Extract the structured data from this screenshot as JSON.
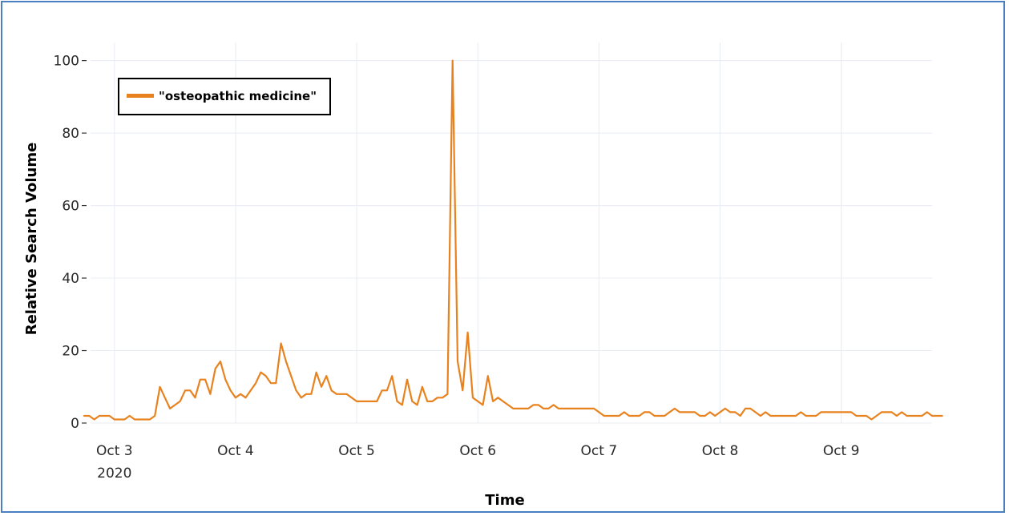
{
  "chart_data": {
    "type": "line",
    "title": "",
    "xlabel": "Time",
    "ylabel": "Relative Search Volume",
    "ylim": [
      0,
      105
    ],
    "yticks": [
      0,
      20,
      40,
      60,
      80,
      100
    ],
    "ytick_labels": [
      "0",
      "20",
      "40",
      "60",
      "80",
      "100"
    ],
    "xlim_days": [
      "2020-10-02T18:00",
      "2020-10-09T18:00"
    ],
    "xticks": [
      {
        "date": "2020-10-03",
        "label": "Oct 3",
        "sublabel": "2020"
      },
      {
        "date": "2020-10-04",
        "label": "Oct 4",
        "sublabel": ""
      },
      {
        "date": "2020-10-05",
        "label": "Oct 5",
        "sublabel": ""
      },
      {
        "date": "2020-10-06",
        "label": "Oct 6",
        "sublabel": ""
      },
      {
        "date": "2020-10-07",
        "label": "Oct 7",
        "sublabel": ""
      },
      {
        "date": "2020-10-08",
        "label": "Oct 8",
        "sublabel": ""
      },
      {
        "date": "2020-10-09",
        "label": "Oct 9",
        "sublabel": ""
      }
    ],
    "grid": true,
    "legend_position": "top-left",
    "series": [
      {
        "name": "\"osteopathic medicine\"",
        "color": "#e8821e",
        "x_start": "2020-10-02T18:00",
        "x_step_hours": 1,
        "values": [
          2,
          2,
          1,
          2,
          2,
          2,
          1,
          1,
          1,
          2,
          1,
          1,
          1,
          1,
          2,
          10,
          7,
          4,
          5,
          6,
          9,
          9,
          7,
          12,
          12,
          8,
          15,
          17,
          12,
          9,
          7,
          8,
          7,
          9,
          11,
          14,
          13,
          11,
          11,
          22,
          17,
          13,
          9,
          7,
          8,
          8,
          14,
          10,
          13,
          9,
          8,
          8,
          8,
          7,
          6,
          6,
          6,
          6,
          6,
          9,
          9,
          13,
          6,
          5,
          12,
          6,
          5,
          10,
          6,
          6,
          7,
          7,
          8,
          100,
          17,
          9,
          25,
          7,
          6,
          5,
          13,
          6,
          7,
          6,
          5,
          4,
          4,
          4,
          4,
          5,
          5,
          4,
          4,
          5,
          4,
          4,
          4,
          4,
          4,
          4,
          4,
          4,
          3,
          2,
          2,
          2,
          2,
          3,
          2,
          2,
          2,
          3,
          3,
          2,
          2,
          2,
          3,
          4,
          3,
          3,
          3,
          3,
          2,
          2,
          3,
          2,
          3,
          4,
          3,
          3,
          2,
          4,
          4,
          3,
          2,
          3,
          2,
          2,
          2,
          2,
          2,
          2,
          3,
          2,
          2,
          2,
          3,
          3,
          3,
          3,
          3,
          3,
          3,
          2,
          2,
          2,
          1,
          2,
          3,
          3,
          3,
          2,
          3,
          2,
          2,
          2,
          2,
          3,
          2,
          2,
          2
        ]
      }
    ]
  }
}
